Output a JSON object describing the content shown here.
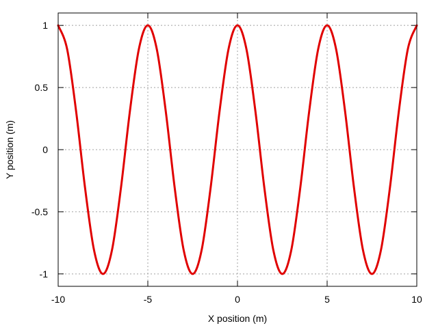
{
  "chart_data": {
    "type": "line",
    "title": "",
    "xlabel": "X position (m)",
    "ylabel": "Y position (m)",
    "xlim": [
      -10,
      10
    ],
    "ylim": [
      -1.1,
      1.1
    ],
    "grid": true,
    "legend": "none",
    "xticks": [
      -10,
      -5,
      0,
      5,
      10
    ],
    "yticks": [
      -1,
      -0.5,
      0,
      0.5,
      1
    ],
    "xtick_labels": [
      "-10",
      "-5",
      "0",
      "5",
      "10"
    ],
    "ytick_labels": [
      "-1",
      "-0.5",
      "0",
      "0.5",
      "1"
    ],
    "series": [
      {
        "color": "#e00000",
        "x": [
          -10,
          -9.5,
          -9,
          -8.5,
          -8,
          -7.5,
          -7,
          -6.5,
          -6,
          -5.5,
          -5,
          -4.5,
          -4,
          -3.5,
          -3,
          -2.5,
          -2,
          -1.5,
          -1,
          -0.5,
          0,
          0.5,
          1,
          1.5,
          2,
          2.5,
          3,
          3.5,
          4,
          4.5,
          5,
          5.5,
          6,
          6.5,
          7,
          7.5,
          8,
          8.5,
          9,
          9.5,
          10
        ],
        "y": [
          1,
          0.809,
          0.309,
          -0.309,
          -0.809,
          -1,
          -0.809,
          -0.309,
          0.309,
          0.809,
          1,
          0.809,
          0.309,
          -0.309,
          -0.809,
          -1,
          -0.809,
          -0.309,
          0.309,
          0.809,
          1,
          0.809,
          0.309,
          -0.309,
          -0.809,
          -1,
          -0.809,
          -0.309,
          0.309,
          0.809,
          1,
          0.809,
          0.309,
          -0.309,
          -0.809,
          -1,
          -0.809,
          -0.309,
          0.309,
          0.809,
          1
        ]
      }
    ]
  }
}
